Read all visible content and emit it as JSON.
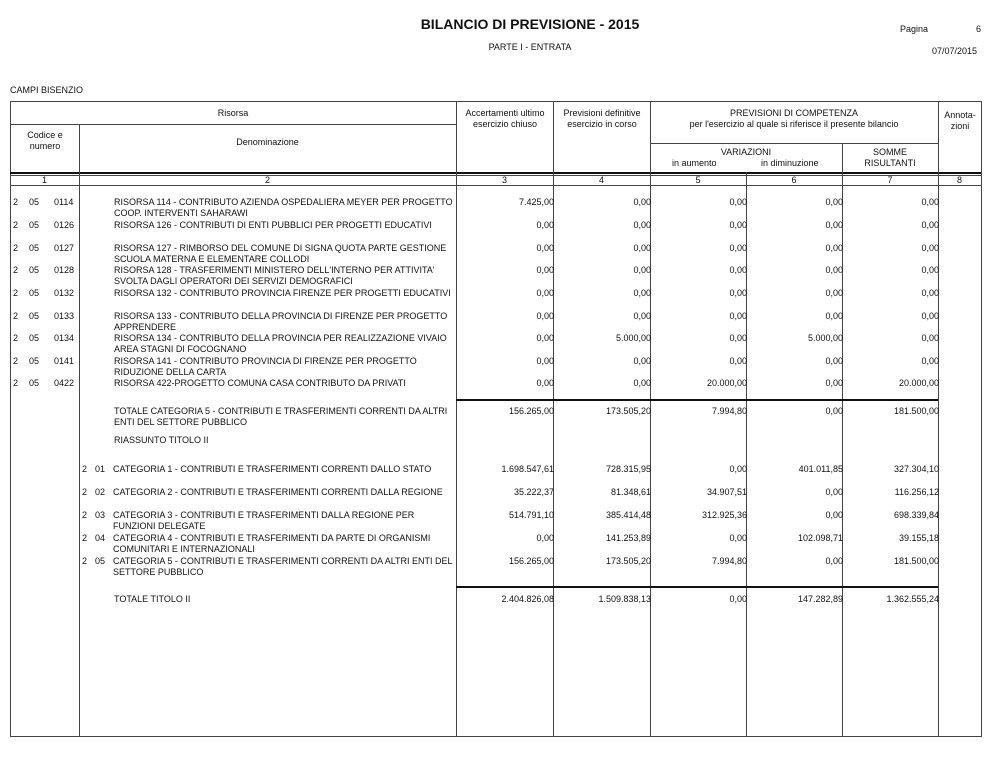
{
  "header": {
    "title": "BILANCIO DI PREVISIONE - 2015",
    "subtitle": "PARTE I - ENTRATA",
    "page_label": "Pagina",
    "page_number": "6",
    "date": "07/07/2015",
    "entity": "CAMPI BISENZIO"
  },
  "table_header": {
    "risorsa": "Risorsa",
    "codice": "Codice e numero",
    "denominazione": "Denominazione",
    "accertamenti": "Accertamenti ultimo esercizio chiuso",
    "previsioni_def": "Previsioni definitive esercizio in corso",
    "previsioni_comp": "PREVISIONI DI COMPETENZA",
    "previsioni_comp_sub": "per l'esercizio al quale si riferisce il presente bilancio",
    "variazioni": "VARIAZIONI",
    "in_aumento": "in aumento",
    "in_diminuzione": "in diminuzione",
    "somme": "SOMME RISULTANTI",
    "annotazioni": "Annota-zioni",
    "col_numbers": [
      "1",
      "2",
      "3",
      "4",
      "5",
      "6",
      "7",
      "8"
    ]
  },
  "rows": [
    {
      "code": [
        "2",
        "05",
        "0114"
      ],
      "desc": "RISORSA 114 - CONTRIBUTO AZIENDA OSPEDALIERA MEYER PER PROGETTO COOP. INTERVENTI SAHARAWI",
      "values": [
        "7.425,00",
        "0,00",
        "0,00",
        "0,00",
        "0,00"
      ]
    },
    {
      "code": [
        "2",
        "05",
        "0126"
      ],
      "desc": "RISORSA 126 - CONTRIBUTI DI ENTI PUBBLICI PER PROGETTI EDUCATIVI",
      "values": [
        "0,00",
        "0,00",
        "0,00",
        "0,00",
        "0,00"
      ]
    },
    {
      "code": [
        "2",
        "05",
        "0127"
      ],
      "desc": "RISORSA 127 - RIMBORSO DEL COMUNE DI SIGNA QUOTA PARTE GESTIONE SCUOLA MATERNA E ELEMENTARE COLLODI",
      "values": [
        "0,00",
        "0,00",
        "0,00",
        "0,00",
        "0,00"
      ]
    },
    {
      "code": [
        "2",
        "05",
        "0128"
      ],
      "desc": "RISORSA 128 - TRASFERIMENTI MINISTERO DELL'INTERNO PER ATTIVITA' SVOLTA DAGLI OPERATORI DEI SERVIZI DEMOGRAFICI",
      "values": [
        "0,00",
        "0,00",
        "0,00",
        "0,00",
        "0,00"
      ]
    },
    {
      "code": [
        "2",
        "05",
        "0132"
      ],
      "desc": "RISORSA 132 - CONTRIBUTO PROVINCIA FIRENZE PER PROGETTI EDUCATIVI",
      "values": [
        "0,00",
        "0,00",
        "0,00",
        "0,00",
        "0,00"
      ]
    },
    {
      "code": [
        "2",
        "05",
        "0133"
      ],
      "desc": "RISORSA 133 - CONTRIBUTO DELLA PROVINCIA DI FIRENZE PER PROGETTO APPRENDERE",
      "values": [
        "0,00",
        "0,00",
        "0,00",
        "0,00",
        "0,00"
      ]
    },
    {
      "code": [
        "2",
        "05",
        "0134"
      ],
      "desc": "RISORSA 134 - CONTRIBUTO DELLA PROVINCIA PER REALIZZAZIONE VIVAIO AREA STAGNI DI FOCOGNANO",
      "values": [
        "0,00",
        "5.000,00",
        "0,00",
        "5.000,00",
        "0,00"
      ]
    },
    {
      "code": [
        "2",
        "05",
        "0141"
      ],
      "desc": "RISORSA 141 - CONTRIBUTO PROVINCIA DI FIRENZE PER PROGETTO RIDUZIONE DELLA CARTA",
      "values": [
        "0,00",
        "0,00",
        "0,00",
        "0,00",
        "0,00"
      ]
    },
    {
      "code": [
        "2",
        "05",
        "0422"
      ],
      "desc": "RISORSA 422-PROGETTO COMUNA CASA CONTRIBUTO DA PRIVATI",
      "values": [
        "0,00",
        "0,00",
        "20.000,00",
        "0,00",
        "20.000,00"
      ]
    }
  ],
  "totale_categoria": {
    "desc": "TOTALE CATEGORIA 5 - CONTRIBUTI E TRASFERIMENTI CORRENTI DA ALTRI ENTI DEL SETTORE PUBBLICO",
    "values": [
      "156.265,00",
      "173.505,20",
      "7.994,80",
      "0,00",
      "181.500,00"
    ]
  },
  "riassunto_label": "RIASSUNTO TITOLO II",
  "categorie": [
    {
      "code": [
        "2",
        "01"
      ],
      "desc": "CATEGORIA 1 - CONTRIBUTI E TRASFERIMENTI CORRENTI DALLO STATO",
      "values": [
        "1.698.547,61",
        "728.315,95",
        "0,00",
        "401.011,85",
        "327.304,10"
      ]
    },
    {
      "code": [
        "2",
        "02"
      ],
      "desc": "CATEGORIA 2 - CONTRIBUTI E TRASFERIMENTI CORRENTI DALLA REGIONE",
      "values": [
        "35.222,37",
        "81.348,61",
        "34.907,51",
        "0,00",
        "116.256,12"
      ]
    },
    {
      "code": [
        "2",
        "03"
      ],
      "desc": "CATEGORIA 3 - CONTRIBUTI E TRASFERIMENTI DALLA REGIONE PER FUNZIONI DELEGATE",
      "values": [
        "514.791,10",
        "385.414,48",
        "312.925,36",
        "0,00",
        "698.339,84"
      ]
    },
    {
      "code": [
        "2",
        "04"
      ],
      "desc": "CATEGORIA 4 - CONTRIBUTI E TRASFERIMENTI DA PARTE DI ORGANISMI COMUNITARI E INTERNAZIONALI",
      "values": [
        "0,00",
        "141.253,89",
        "0,00",
        "102.098,71",
        "39.155,18"
      ]
    },
    {
      "code": [
        "2",
        "05"
      ],
      "desc": "CATEGORIA 5 - CONTRIBUTI E TRASFERIMENTI CORRENTI DA ALTRI ENTI DEL SETTORE PUBBLICO",
      "values": [
        "156.265,00",
        "173.505,20",
        "7.994,80",
        "0,00",
        "181.500,00"
      ]
    }
  ],
  "totale_titolo": {
    "desc": "TOTALE TITOLO II",
    "values": [
      "2.404.826,08",
      "1.509.838,13",
      "0,00",
      "147.282,89",
      "1.362.555,24"
    ]
  }
}
